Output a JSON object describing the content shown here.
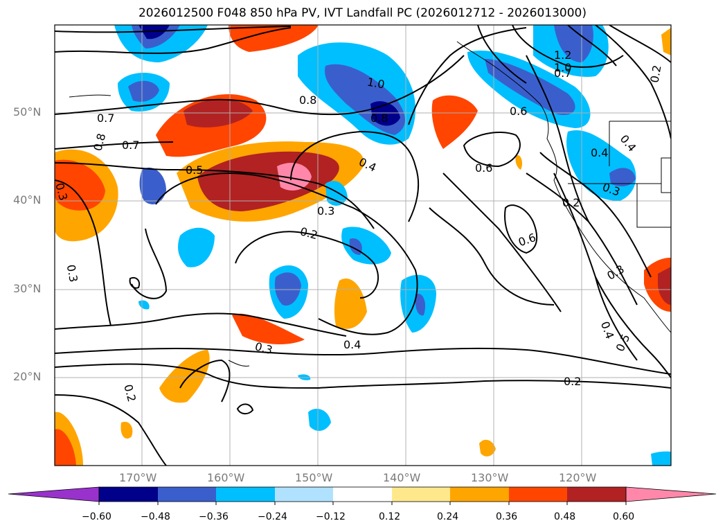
{
  "title": "2026012500 F048 850 hPa PV, IVT Landfall PC (2026012712 - 2026013000)",
  "lat_labels": [
    "50°N",
    "40°N",
    "30°N",
    "20°N"
  ],
  "lon_labels": [
    "170°W",
    "160°W",
    "150°W",
    "140°W",
    "130°W",
    "120°W"
  ],
  "contour_labels": [
    "1.2",
    "1.0",
    "0.7",
    "0.8",
    "0.7",
    "0.8",
    "0.7",
    "0.5",
    "0.3",
    "0.3",
    "0.2",
    "0.3",
    "0.4",
    "0.6",
    "0.6",
    "0.6",
    "0.4",
    "0.4",
    "0.3",
    "0.3",
    "0.2",
    "0.2",
    "0.4",
    "0.5",
    "0.2",
    "0.3",
    "0.2",
    "1.0",
    "0.8",
    "0.4"
  ],
  "colorbar": {
    "ticks": [
      "−0.60",
      "−0.48",
      "−0.36",
      "−0.24",
      "−0.12",
      "0.12",
      "0.24",
      "0.36",
      "0.48",
      "0.60"
    ],
    "colors": [
      "#9932cc",
      "#00008b",
      "#3a5fcd",
      "#00bfff",
      "#b0e2ff",
      "#ffffff",
      "#ffe88c",
      "#ffa500",
      "#ff4500",
      "#b22222",
      "#ff88aa"
    ]
  }
}
